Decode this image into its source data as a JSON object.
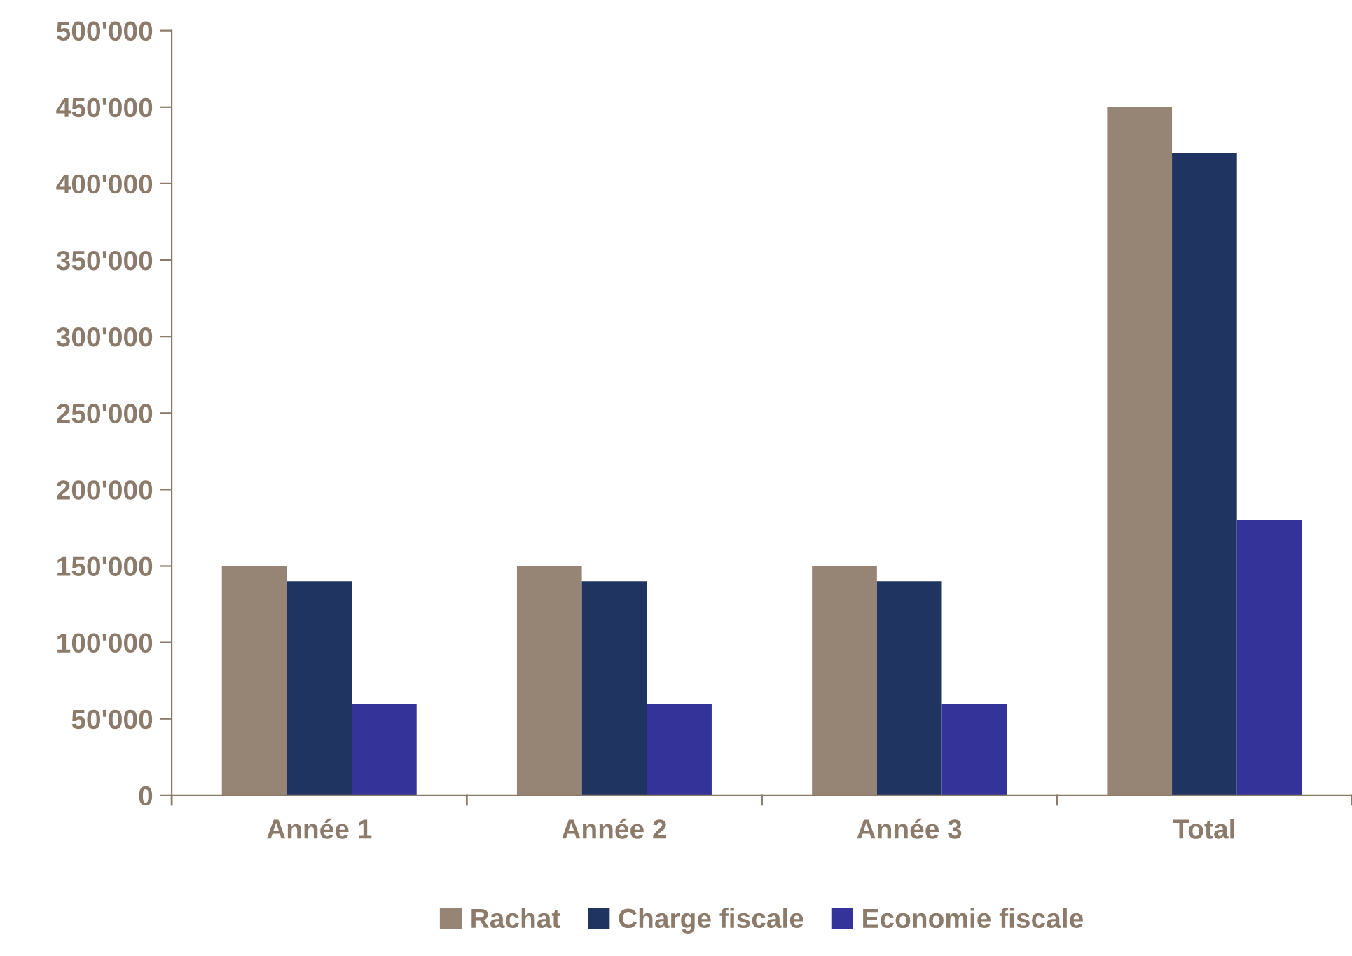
{
  "chart_data": {
    "type": "bar",
    "categories": [
      "Année 1",
      "Année 2",
      "Année 3",
      "Total"
    ],
    "series": [
      {
        "name": "Rachat",
        "color": "#968475",
        "values": [
          150000,
          150000,
          150000,
          450000
        ]
      },
      {
        "name": "Charge fiscale",
        "color": "#1f3461",
        "values": [
          140000,
          140000,
          140000,
          420000
        ]
      },
      {
        "name": "Economie fiscale",
        "color": "#333399",
        "values": [
          60000,
          60000,
          60000,
          180000
        ]
      }
    ],
    "ylim": [
      0,
      500000
    ],
    "yticks": [
      0,
      {
        "value": 50000,
        "label": "50'000"
      },
      {
        "value": 100000,
        "label": "100'000"
      },
      {
        "value": 150000,
        "label": "150'000"
      },
      {
        "value": 200000,
        "label": "200'000"
      },
      {
        "value": 250000,
        "label": "250'000"
      },
      {
        "value": 300000,
        "label": "300'000"
      },
      {
        "value": 350000,
        "label": "350'000"
      },
      {
        "value": 400000,
        "label": "400'000"
      },
      {
        "value": 450000,
        "label": "450'000"
      },
      {
        "value": 500000,
        "label": "500'000"
      }
    ],
    "grid": false,
    "legend": "bottom"
  }
}
